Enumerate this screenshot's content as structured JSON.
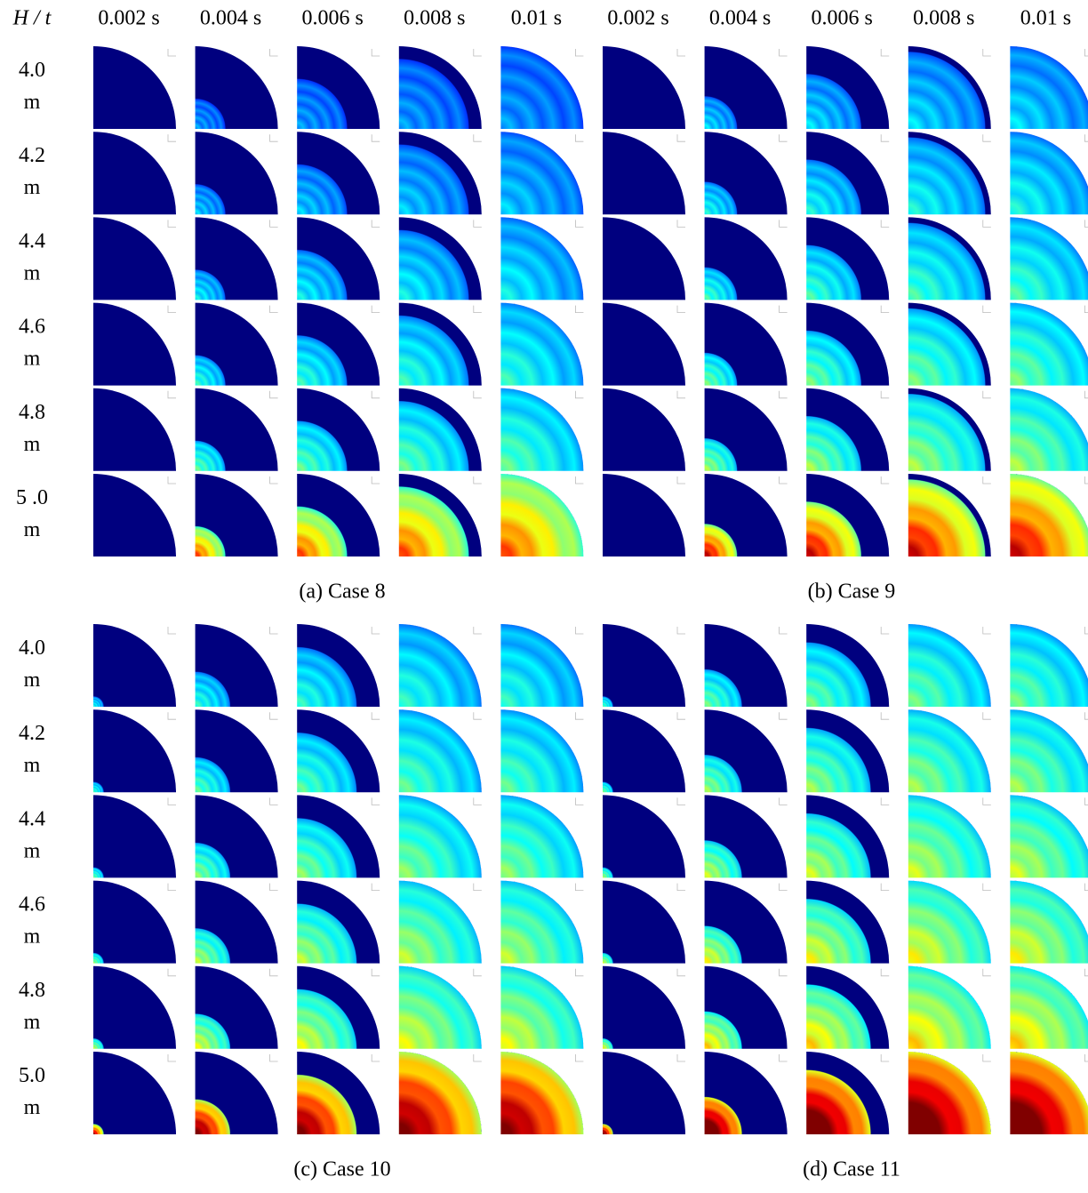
{
  "header": {
    "corner": "H / t",
    "columns": [
      "0.002 s",
      "0.004 s",
      "0.006 s",
      "0.008 s",
      "0.01 s",
      "0.002 s",
      "0.004 s",
      "0.006 s",
      "0.008 s",
      "0.01 s"
    ]
  },
  "groups": [
    {
      "rows": [
        {
          "h": "4.0",
          "unit": "m"
        },
        {
          "h": "4.2",
          "unit": "m"
        },
        {
          "h": "4.4",
          "unit": "m"
        },
        {
          "h": "4.6",
          "unit": "m"
        },
        {
          "h": "4.8",
          "unit": "m"
        },
        {
          "h": "5 .0",
          "unit": "m"
        }
      ],
      "captions": [
        "(a) Case 8",
        "(b) Case 9"
      ]
    },
    {
      "rows": [
        {
          "h": "4.0",
          "unit": "m"
        },
        {
          "h": "4.2",
          "unit": "m"
        },
        {
          "h": "4.4",
          "unit": "m"
        },
        {
          "h": "4.6",
          "unit": "m"
        },
        {
          "h": "4.8",
          "unit": "m"
        },
        {
          "h": "5.0",
          "unit": "m"
        }
      ],
      "captions": [
        "(c) Case 10",
        "(d) Case 11"
      ]
    }
  ]
}
